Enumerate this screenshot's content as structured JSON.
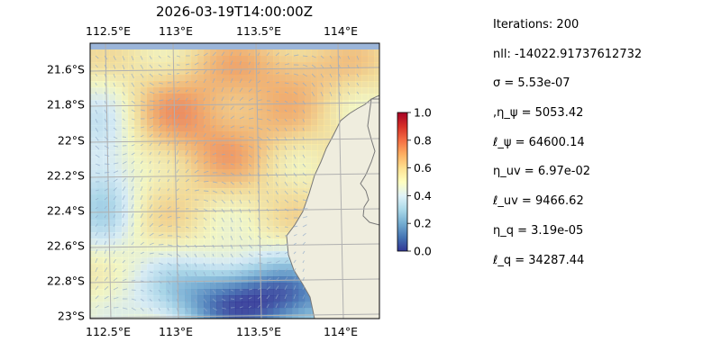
{
  "title": "2026-03-19T14:00:00Z",
  "map": {
    "lon_range": [
      112.5,
      114.2
    ],
    "lat_range": [
      -23.0,
      -21.5
    ],
    "x_ticks": [
      "112.5°E",
      "113°E",
      "113.5°E",
      "114°E"
    ],
    "y_ticks": [
      "21.6°S",
      "21.8°S",
      "22°S",
      "22.2°S",
      "22.4°S",
      "22.6°S",
      "22.8°S",
      "23°S"
    ],
    "colors": {
      "land": "#efedde",
      "ocean": "#9bb5d9",
      "coast": "#777777"
    }
  },
  "colorbar": {
    "ticks": [
      "1.0",
      "0.8",
      "0.6",
      "0.4",
      "0.2",
      "0.0"
    ],
    "range": [
      0.0,
      1.0
    ],
    "colormap": "RdYlBu_r"
  },
  "stats": [
    "Iterations: 200",
    "nll: -14022.91737612732",
    "σ = 5.53e-07",
    ",η_ψ = 5053.42",
    "ℓ_ψ = 64600.14",
    "η_uv = 6.97e-02",
    "ℓ_uv = 9466.62",
    "η_q = 3.19e-05",
    "ℓ_q = 34287.44"
  ]
}
